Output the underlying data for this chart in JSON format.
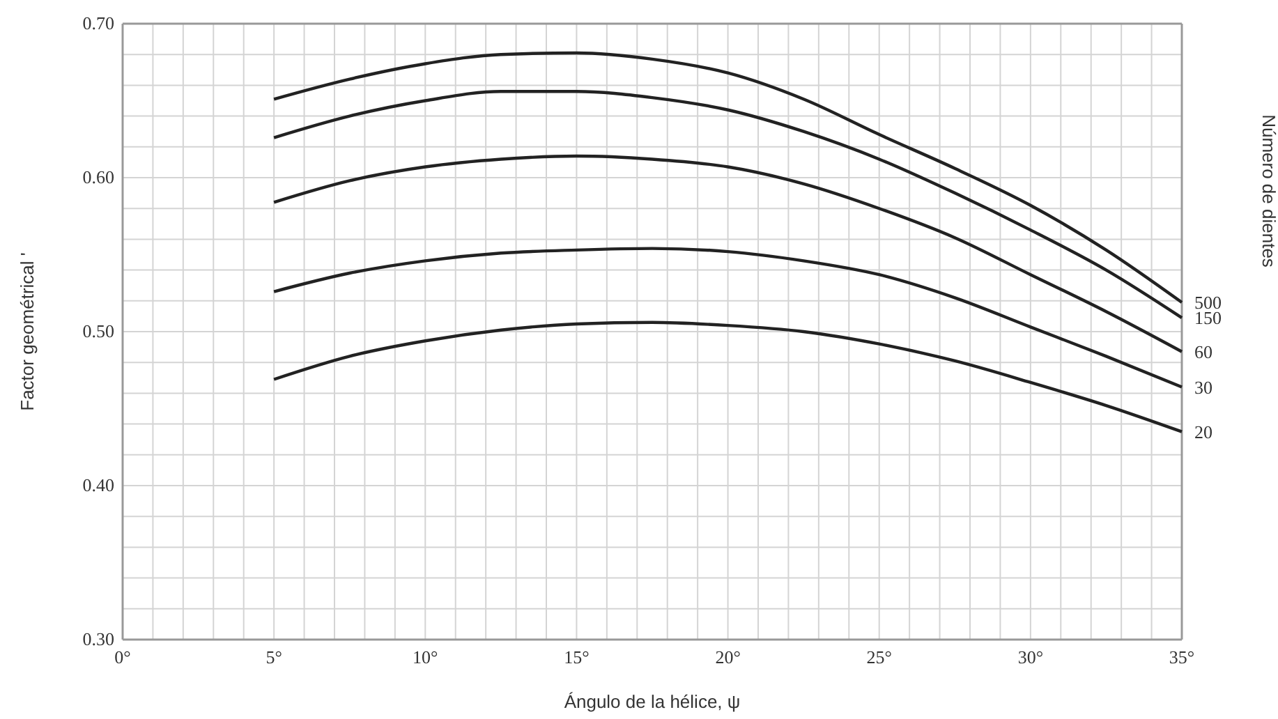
{
  "chart_data": {
    "type": "line",
    "xlabel": "Ángulo de la hélice, ψ",
    "ylabel": "Factor geométrical '",
    "y2label": "Número de dientes",
    "x": [
      5,
      7.5,
      10,
      12.5,
      15,
      17.5,
      20,
      22.5,
      25,
      27.5,
      30,
      32.5,
      35
    ],
    "series": [
      {
        "name": "500",
        "color": "#222222",
        "values": [
          0.651,
          0.664,
          0.674,
          0.68,
          0.681,
          0.677,
          0.668,
          0.651,
          0.628,
          0.606,
          0.582,
          0.553,
          0.519
        ]
      },
      {
        "name": "150",
        "color": "#222222",
        "values": [
          0.626,
          0.64,
          0.65,
          0.656,
          0.656,
          0.652,
          0.644,
          0.63,
          0.612,
          0.59,
          0.566,
          0.54,
          0.509
        ]
      },
      {
        "name": "60",
        "color": "#222222",
        "values": [
          0.584,
          0.598,
          0.607,
          0.612,
          0.614,
          0.612,
          0.607,
          0.596,
          0.58,
          0.561,
          0.537,
          0.513,
          0.487
        ]
      },
      {
        "name": "30",
        "color": "#222222",
        "values": [
          0.526,
          0.538,
          0.546,
          0.551,
          0.553,
          0.554,
          0.552,
          0.546,
          0.537,
          0.522,
          0.503,
          0.484,
          0.464
        ]
      },
      {
        "name": "20",
        "color": "#222222",
        "values": [
          0.469,
          0.484,
          0.494,
          0.501,
          0.505,
          0.506,
          0.504,
          0.5,
          0.492,
          0.481,
          0.467,
          0.452,
          0.435
        ]
      }
    ],
    "xlim": [
      0,
      35
    ],
    "xticks": [
      {
        "value": 0,
        "label": "0°"
      },
      {
        "value": 1,
        "label": null
      },
      {
        "value": 2,
        "label": null
      },
      {
        "value": 3,
        "label": null
      },
      {
        "value": 4,
        "label": null
      },
      {
        "value": 5,
        "label": "5°"
      },
      {
        "value": 6,
        "label": null
      },
      {
        "value": 7,
        "label": null
      },
      {
        "value": 8,
        "label": null
      },
      {
        "value": 9,
        "label": null
      },
      {
        "value": 10,
        "label": "10°"
      },
      {
        "value": 11,
        "label": null
      },
      {
        "value": 12,
        "label": null
      },
      {
        "value": 13,
        "label": null
      },
      {
        "value": 14,
        "label": null
      },
      {
        "value": 15,
        "label": "15°"
      },
      {
        "value": 16,
        "label": null
      },
      {
        "value": 17,
        "label": null
      },
      {
        "value": 18,
        "label": null
      },
      {
        "value": 19,
        "label": null
      },
      {
        "value": 20,
        "label": "20°"
      },
      {
        "value": 21,
        "label": null
      },
      {
        "value": 22,
        "label": null
      },
      {
        "value": 23,
        "label": null
      },
      {
        "value": 24,
        "label": null
      },
      {
        "value": 25,
        "label": "25°"
      },
      {
        "value": 26,
        "label": null
      },
      {
        "value": 27,
        "label": null
      },
      {
        "value": 28,
        "label": null
      },
      {
        "value": 29,
        "label": null
      },
      {
        "value": 30,
        "label": "30°"
      },
      {
        "value": 31,
        "label": null
      },
      {
        "value": 32,
        "label": null
      },
      {
        "value": 33,
        "label": null
      },
      {
        "value": 34,
        "label": null
      },
      {
        "value": 35,
        "label": "35°"
      }
    ],
    "ylim": [
      0.3,
      0.7
    ],
    "yticks": [
      {
        "value": 0.3,
        "label": "0.30"
      },
      {
        "value": 0.32,
        "label": null
      },
      {
        "value": 0.34,
        "label": null
      },
      {
        "value": 0.36,
        "label": null
      },
      {
        "value": 0.38,
        "label": null
      },
      {
        "value": 0.4,
        "label": "0.40"
      },
      {
        "value": 0.42,
        "label": null
      },
      {
        "value": 0.44,
        "label": null
      },
      {
        "value": 0.46,
        "label": null
      },
      {
        "value": 0.48,
        "label": null
      },
      {
        "value": 0.5,
        "label": "0.50"
      },
      {
        "value": 0.52,
        "label": null
      },
      {
        "value": 0.54,
        "label": null
      },
      {
        "value": 0.56,
        "label": null
      },
      {
        "value": 0.58,
        "label": null
      },
      {
        "value": 0.6,
        "label": "0.60"
      },
      {
        "value": 0.62,
        "label": null
      },
      {
        "value": 0.64,
        "label": null
      },
      {
        "value": 0.66,
        "label": null
      },
      {
        "value": 0.68,
        "label": null
      },
      {
        "value": 0.7,
        "label": "0.70"
      }
    ],
    "grid": true,
    "marker": "none",
    "line_style": "solid",
    "legend": false
  }
}
